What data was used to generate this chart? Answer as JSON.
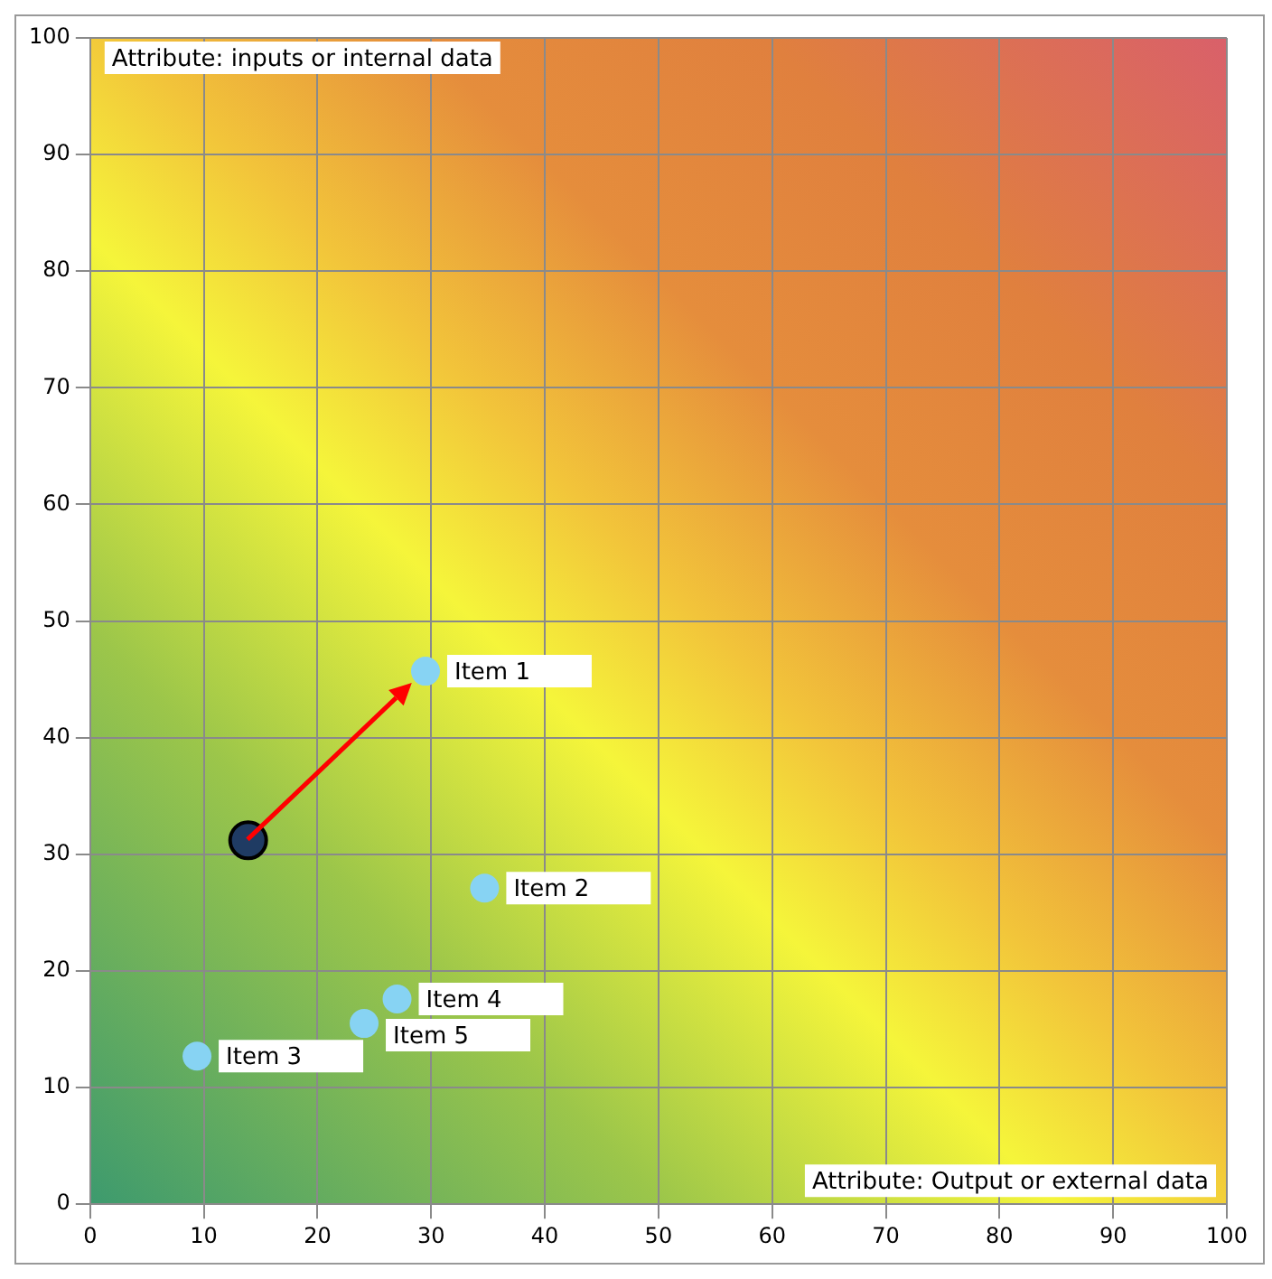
{
  "chart_data": {
    "type": "scatter",
    "marker": "circle",
    "grid": true,
    "legend": false,
    "xlim": [
      0,
      100
    ],
    "xticks": [
      0,
      10,
      20,
      30,
      40,
      50,
      60,
      70,
      80,
      90,
      100
    ],
    "ylim": [
      0,
      100
    ],
    "yticks": [
      0,
      10,
      20,
      30,
      40,
      50,
      60,
      70,
      80,
      90,
      100
    ],
    "series": [
      {
        "color": "#87d3f3",
        "x": [
          29.5,
          34.7,
          9.4,
          27.0,
          24.1
        ],
        "values": [
          45.7,
          27.1,
          12.7,
          17.6,
          15.5
        ]
      },
      {
        "color": "#1f3b63",
        "x": [
          13.9
        ],
        "values": [
          31.2
        ]
      }
    ],
    "annotations": [
      "Attribute: inputs or internal data",
      "Attribute: Output or external data",
      {
        "text": "Item 1",
        "x": 29.5,
        "y": 45.7
      },
      {
        "text": "Item 2",
        "x": 34.7,
        "y": 27.1
      },
      {
        "text": "Item 3",
        "x": 9.4,
        "y": 12.7
      },
      {
        "text": "Item 4",
        "x": 27.0,
        "y": 17.6
      },
      {
        "text": "Item 5",
        "x": 24.1,
        "y": 15.5
      }
    ]
  }
}
